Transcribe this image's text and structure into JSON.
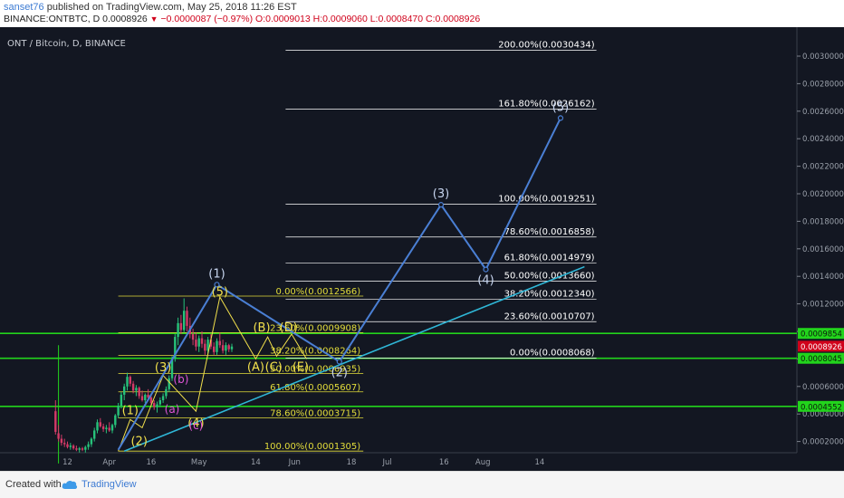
{
  "header": {
    "author": "sanset76",
    "published_text": " published on TradingView.com, May 25, 2018 11:26 EST",
    "symbol": "BINANCE:ONTBTC, D",
    "price": "0.0008926",
    "change": "−0.0000087 (−0.97%)",
    "ohlc": "O:0.0009013 H:0.0009060 L:0.0008470 C:0.0008926"
  },
  "footer": {
    "created_with": "Created with",
    "brand": "TradingView"
  },
  "colors": {
    "background": "#131722",
    "blue_wave": "#4a7fd4",
    "trendline": "#2fb6d6",
    "fib_upper": "#ffffff",
    "fib_lower": "#e3dd3a",
    "support_green": "#22d41c",
    "candle_up": "#27c27a",
    "candle_down": "#d33a67",
    "yellow_wave": "#f2e04c",
    "magenta_wave": "#e055d8"
  },
  "chart_data": {
    "type": "candlestick",
    "title": "ONT / Bitcoin, D, BINANCE",
    "ylim": [
      0.0,
      0.0032
    ],
    "y_ticks": [
      "0.0030000",
      "0.0028000",
      "0.0026000",
      "0.0024000",
      "0.0022000",
      "0.0020000",
      "0.0018000",
      "0.0016000",
      "0.0014000",
      "0.0012000",
      "0.0010000",
      "0.0008000",
      "0.0006000",
      "0.0004000",
      "0.0002000"
    ],
    "x_labels": [
      "12",
      "Apr",
      "16",
      "May",
      "14",
      "Jun",
      "18",
      "Jul",
      "16",
      "Aug",
      "14"
    ],
    "price_labels": [
      {
        "text": "0.0009854",
        "kind": "green",
        "value": 0.0009854
      },
      {
        "text": "0.0008926",
        "kind": "red",
        "value": 0.0008926
      },
      {
        "text": "0.0008045",
        "kind": "green",
        "value": 0.0008045
      },
      {
        "text": "0.0004552",
        "kind": "green",
        "value": 0.0004552
      }
    ],
    "support_levels": [
      0.0009854,
      0.0008045,
      0.0004552
    ],
    "fib_upper": [
      {
        "label": "200.00%(0.0030434)",
        "value": 0.0030434
      },
      {
        "label": "161.80%(0.0026162)",
        "value": 0.0026162
      },
      {
        "label": "100.00%(0.0019251)",
        "value": 0.0019251
      },
      {
        "label": "78.60%(0.0016858)",
        "value": 0.0016858
      },
      {
        "label": "61.80%(0.0014979)",
        "value": 0.0014979
      },
      {
        "label": "50.00%(0.0013660)",
        "value": 0.001366
      },
      {
        "label": "38.20%(0.0012340)",
        "value": 0.001234
      },
      {
        "label": "23.60%(0.0010707)",
        "value": 0.0010707
      },
      {
        "label": "0.00%(0.0008068)",
        "value": 0.0008068
      }
    ],
    "fib_lower": [
      {
        "label": "0.00%(0.0012566)",
        "value": 0.0012566
      },
      {
        "label": "23.60%(0.0009908)",
        "value": 0.0009908
      },
      {
        "label": "38.20%(0.0008264)",
        "value": 0.0008264
      },
      {
        "label": "50.00%(0.0006935)",
        "value": 0.0006935
      },
      {
        "label": "61.80%(0.0005607)",
        "value": 0.0005607
      },
      {
        "label": "78.60%(0.0003715)",
        "value": 0.0003715
      },
      {
        "label": "100.00%(0.0001305)",
        "value": 0.0001305
      }
    ],
    "blue_waves": [
      {
        "label": "(1)",
        "day": 45,
        "value": 0.00134
      },
      {
        "label": "(2)",
        "day": 86,
        "value": 0.00078
      },
      {
        "label": "(3)",
        "day": 120,
        "value": 0.00192
      },
      {
        "label": "(4)",
        "day": 135,
        "value": 0.00145
      },
      {
        "label": "(5)",
        "day": 160,
        "value": 0.00255
      }
    ],
    "blue_wave_path": [
      [
        12,
        0.00014
      ],
      [
        45,
        0.00134
      ],
      [
        86,
        0.00078
      ],
      [
        120,
        0.00192
      ],
      [
        135,
        0.00145
      ],
      [
        160,
        0.00255
      ]
    ],
    "trendline": [
      [
        14,
        0.00013
      ],
      [
        168,
        0.00147
      ]
    ],
    "yellow_waves": [
      {
        "label": "(1)",
        "day": 16,
        "value": 0.00036,
        "pos": "above"
      },
      {
        "label": "(2)",
        "day": 19,
        "value": 0.00028,
        "pos": "below"
      },
      {
        "label": "(3)",
        "day": 27,
        "value": 0.00067,
        "pos": "above"
      },
      {
        "label": "(4)",
        "day": 38,
        "value": 0.00041,
        "pos": "below"
      },
      {
        "label": "(5)",
        "day": 46,
        "value": 0.00122,
        "pos": "above"
      },
      {
        "label": "(A)",
        "day": 58,
        "value": 0.00082,
        "pos": "below"
      },
      {
        "label": "(B)",
        "day": 60,
        "value": 0.00096,
        "pos": "above"
      },
      {
        "label": "(C)",
        "day": 64,
        "value": 0.00082,
        "pos": "below"
      },
      {
        "label": "(D)",
        "day": 69,
        "value": 0.00096,
        "pos": "above"
      },
      {
        "label": "(E)",
        "day": 73,
        "value": 0.00082,
        "pos": "below"
      }
    ],
    "yellow_wave_path": [
      [
        12,
        0.00013
      ],
      [
        16,
        0.00036
      ],
      [
        20,
        0.0003
      ],
      [
        27,
        0.00068
      ],
      [
        38,
        0.00042
      ],
      [
        46,
        0.00125
      ],
      [
        58,
        0.0008
      ],
      [
        62,
        0.00096
      ],
      [
        65,
        0.00082
      ],
      [
        70,
        0.00098
      ],
      [
        75,
        0.0008
      ]
    ],
    "magenta_waves": [
      {
        "label": "(b)",
        "day": 33,
        "value": 0.0006,
        "pos": "above"
      },
      {
        "label": "(a)",
        "day": 30,
        "value": 0.0005,
        "pos": "below"
      },
      {
        "label": "(c)",
        "day": 38,
        "value": 0.00038,
        "pos": "below"
      }
    ],
    "volume_marker_day": -8,
    "candles": [
      [
        -9,
        0.00042,
        0.0005,
        0.00025,
        0.00027
      ],
      [
        -8,
        0.00026,
        0.00032,
        0.0002,
        0.00022
      ],
      [
        -7,
        0.00022,
        0.00025,
        0.00017,
        0.00019
      ],
      [
        -6,
        0.00019,
        0.00022,
        0.00016,
        0.00018
      ],
      [
        -5,
        0.00018,
        0.0002,
        0.00015,
        0.00016
      ],
      [
        -4,
        0.00016,
        0.00019,
        0.00014,
        0.00017
      ],
      [
        -3,
        0.00017,
        0.00018,
        0.00014,
        0.00015
      ],
      [
        -2,
        0.00015,
        0.00017,
        0.00013,
        0.00014
      ],
      [
        -1,
        0.00014,
        0.00016,
        0.00012,
        0.00015
      ],
      [
        0,
        0.00015,
        0.00016,
        0.00013,
        0.00014
      ],
      [
        1,
        0.00014,
        0.00017,
        0.00012,
        0.00016
      ],
      [
        2,
        0.00016,
        0.0002,
        0.00014,
        0.00018
      ],
      [
        3,
        0.00018,
        0.00023,
        0.00016,
        0.00022
      ],
      [
        4,
        0.00022,
        0.0003,
        0.0002,
        0.00028
      ],
      [
        5,
        0.00028,
        0.00036,
        0.00026,
        0.00034
      ],
      [
        6,
        0.00034,
        0.00037,
        0.0003,
        0.00031
      ],
      [
        7,
        0.00031,
        0.00033,
        0.00027,
        0.00029
      ],
      [
        8,
        0.00029,
        0.00032,
        0.00026,
        0.0003
      ],
      [
        9,
        0.0003,
        0.00034,
        0.00027,
        0.00028
      ],
      [
        10,
        0.00028,
        0.00033,
        0.00026,
        0.00032
      ],
      [
        11,
        0.00032,
        0.0004,
        0.0003,
        0.00039
      ],
      [
        12,
        0.00039,
        0.00048,
        0.00037,
        0.00046
      ],
      [
        13,
        0.00046,
        0.00056,
        0.00044,
        0.00054
      ],
      [
        14,
        0.00054,
        0.00062,
        0.0005,
        0.0006
      ],
      [
        15,
        0.0006,
        0.0007,
        0.00057,
        0.00067
      ],
      [
        16,
        0.00067,
        0.00068,
        0.0006,
        0.00062
      ],
      [
        17,
        0.00062,
        0.00064,
        0.00055,
        0.00057
      ],
      [
        18,
        0.00057,
        0.00061,
        0.00053,
        0.00059
      ],
      [
        19,
        0.00059,
        0.0006,
        0.00051,
        0.00053
      ],
      [
        20,
        0.00053,
        0.00057,
        0.00049,
        0.0005
      ],
      [
        21,
        0.0005,
        0.00055,
        0.00048,
        0.00054
      ],
      [
        22,
        0.00054,
        0.00058,
        0.0005,
        0.00052
      ],
      [
        23,
        0.00052,
        0.00054,
        0.00046,
        0.00048
      ],
      [
        24,
        0.00048,
        0.0005,
        0.00043,
        0.00045
      ],
      [
        25,
        0.00045,
        0.00049,
        0.00041,
        0.00047
      ],
      [
        26,
        0.00047,
        0.00052,
        0.00045,
        0.0005
      ],
      [
        27,
        0.0005,
        0.00055,
        0.00048,
        0.00053
      ],
      [
        28,
        0.00053,
        0.0006,
        0.00051,
        0.00058
      ],
      [
        29,
        0.00058,
        0.00068,
        0.00056,
        0.00066
      ],
      [
        30,
        0.00066,
        0.00082,
        0.00064,
        0.0008
      ],
      [
        31,
        0.0008,
        0.00098,
        0.00078,
        0.00096
      ],
      [
        32,
        0.00096,
        0.0011,
        0.0009,
        0.00106
      ],
      [
        33,
        0.00106,
        0.00112,
        0.00098,
        0.00101
      ],
      [
        34,
        0.00101,
        0.00124,
        0.00099,
        0.00115
      ],
      [
        35,
        0.00115,
        0.00118,
        0.001,
        0.00104
      ],
      [
        36,
        0.00104,
        0.0011,
        0.00095,
        0.00098
      ],
      [
        37,
        0.00098,
        0.00102,
        0.0009,
        0.00094
      ],
      [
        38,
        0.00094,
        0.00099,
        0.00086,
        0.00089
      ],
      [
        39,
        0.00089,
        0.00097,
        0.00085,
        0.00095
      ],
      [
        40,
        0.00095,
        0.001,
        0.00088,
        0.00091
      ],
      [
        41,
        0.00091,
        0.00094,
        0.00083,
        0.00086
      ],
      [
        42,
        0.00086,
        0.00096,
        0.00084,
        0.00094
      ],
      [
        43,
        0.00094,
        0.00098,
        0.00087,
        0.00089
      ],
      [
        44,
        0.00089,
        0.00092,
        0.00083,
        0.00085
      ],
      [
        45,
        0.00085,
        0.00095,
        0.00083,
        0.00093
      ],
      [
        46,
        0.00093,
        0.00099,
        0.00088,
        0.0009
      ],
      [
        47,
        0.0009,
        0.00094,
        0.00084,
        0.00086
      ],
      [
        48,
        0.00086,
        0.00092,
        0.00083,
        0.0009
      ],
      [
        49,
        0.0009,
        0.00091,
        0.00085,
        0.00087
      ],
      [
        50,
        0.00087,
        0.00091,
        0.00085,
        0.00089
      ]
    ]
  }
}
